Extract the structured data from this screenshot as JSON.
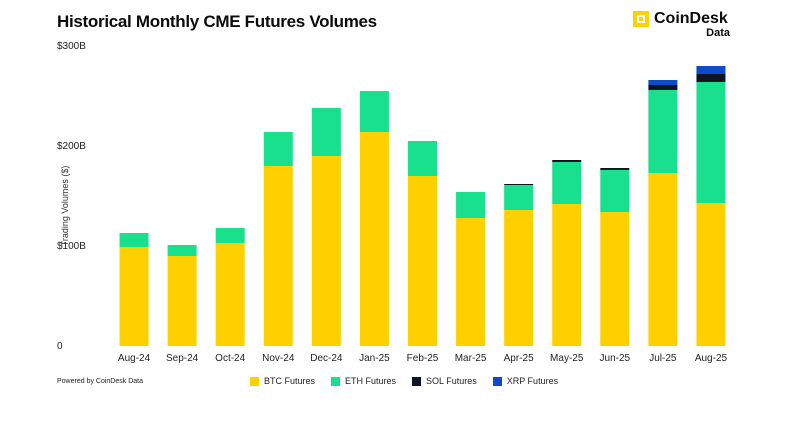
{
  "title": "Historical Monthly CME Futures Volumes",
  "logo": {
    "name": "CoinDesk",
    "sub": "Data",
    "icon": "coindesk-logo-icon"
  },
  "footer": "Powered by CoinDesk Data",
  "colors": {
    "btc": "#FFD000",
    "eth": "#19E08C",
    "sol": "#0D1524",
    "xrp": "#0E4BC9"
  },
  "chart_data": {
    "type": "bar",
    "stacked": true,
    "title": "Historical Monthly CME Futures Volumes",
    "xlabel": "",
    "ylabel": "Trading Volumes ($)",
    "ylim": [
      0,
      300
    ],
    "y_ticks": [
      0,
      100,
      200,
      300
    ],
    "y_tick_labels": [
      "0",
      "$100B",
      "$200B",
      "$300B"
    ],
    "grid": false,
    "legend_position": "bottom",
    "categories": [
      "Aug-24",
      "Sep-24",
      "Oct-24",
      "Nov-24",
      "Dec-24",
      "Jan-25",
      "Feb-25",
      "Mar-25",
      "Apr-25",
      "May-25",
      "Jun-25",
      "Jul-25",
      "Aug-25"
    ],
    "series": [
      {
        "name": "BTC Futures",
        "color": "#FFD000",
        "values": [
          99,
          90,
          103,
          180,
          190,
          214,
          170,
          128,
          136,
          142,
          134,
          173,
          143
        ]
      },
      {
        "name": "ETH Futures",
        "color": "#19E08C",
        "values": [
          14,
          11,
          15,
          34,
          48,
          41,
          35,
          26,
          25,
          42,
          42,
          83,
          121
        ]
      },
      {
        "name": "SOL Futures",
        "color": "#0D1524",
        "values": [
          0,
          0,
          0,
          0,
          0,
          0,
          0,
          0,
          1,
          2,
          2,
          5,
          8
        ]
      },
      {
        "name": "XRP Futures",
        "color": "#0E4BC9",
        "values": [
          0,
          0,
          0,
          0,
          0,
          0,
          0,
          0,
          0,
          0,
          0,
          5,
          8
        ]
      }
    ]
  }
}
